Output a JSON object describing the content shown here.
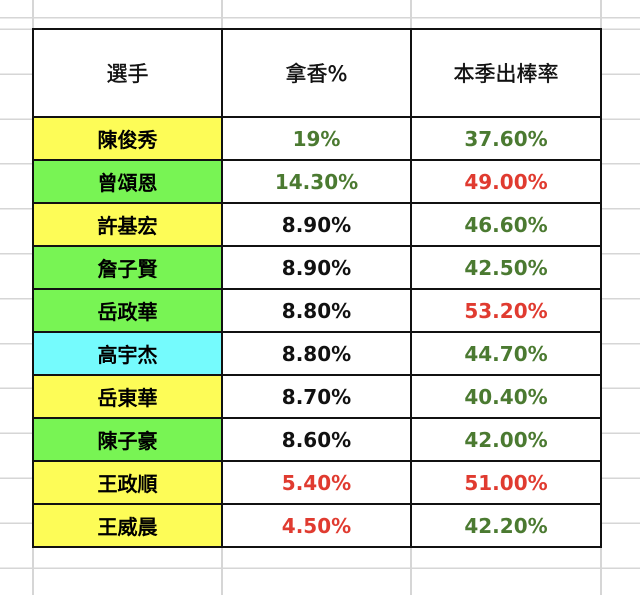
{
  "headers": [
    "選手",
    "拿香%",
    "本季出棒率"
  ],
  "colors": {
    "yellow": "#fdfc57",
    "green": "#78f454",
    "cyan": "#75fbfd",
    "text_green": "#4b7a31",
    "text_red": "#e03b30",
    "text_black": "#111111"
  },
  "rows": [
    {
      "name": "陳俊秀",
      "bg": "yellow",
      "pct": "19%",
      "pct_color": "green",
      "obp": "37.60%",
      "obp_color": "green"
    },
    {
      "name": "曾頌恩",
      "bg": "green",
      "pct": "14.30%",
      "pct_color": "green",
      "obp": "49.00%",
      "obp_color": "red"
    },
    {
      "name": "許基宏",
      "bg": "yellow",
      "pct": "8.90%",
      "pct_color": "black",
      "obp": "46.60%",
      "obp_color": "green"
    },
    {
      "name": "詹子賢",
      "bg": "green",
      "pct": "8.90%",
      "pct_color": "black",
      "obp": "42.50%",
      "obp_color": "green"
    },
    {
      "name": "岳政華",
      "bg": "green",
      "pct": "8.80%",
      "pct_color": "black",
      "obp": "53.20%",
      "obp_color": "red"
    },
    {
      "name": "高宇杰",
      "bg": "cyan",
      "pct": "8.80%",
      "pct_color": "black",
      "obp": "44.70%",
      "obp_color": "green"
    },
    {
      "name": "岳東華",
      "bg": "yellow",
      "pct": "8.70%",
      "pct_color": "black",
      "obp": "40.40%",
      "obp_color": "green"
    },
    {
      "name": "陳子豪",
      "bg": "green",
      "pct": "8.60%",
      "pct_color": "black",
      "obp": "42.00%",
      "obp_color": "green"
    },
    {
      "name": "王政順",
      "bg": "yellow",
      "pct": "5.40%",
      "pct_color": "red",
      "obp": "51.00%",
      "obp_color": "red"
    },
    {
      "name": "王威晨",
      "bg": "yellow",
      "pct": "4.50%",
      "pct_color": "red",
      "obp": "42.20%",
      "obp_color": "green"
    }
  ]
}
